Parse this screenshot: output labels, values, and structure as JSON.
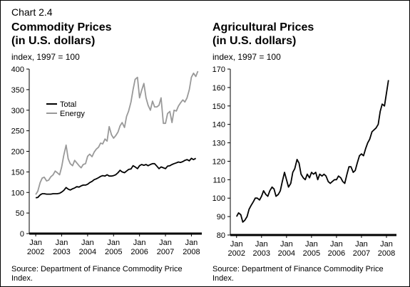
{
  "header": {
    "chart_number": "Chart 2.4"
  },
  "colors": {
    "total": "#000000",
    "energy": "#999999",
    "axis": "#000000"
  },
  "source": "Source: Department of Finance Commodity Price Index.",
  "chart_data": [
    {
      "type": "line",
      "title_line1": "Commodity Prices",
      "title_line2": "(in U.S. dollars)",
      "ylabel": "index, 1997 = 100",
      "ylim": [
        0,
        400
      ],
      "yticks": [
        0,
        50,
        100,
        150,
        200,
        250,
        300,
        350,
        400
      ],
      "xlim": [
        2001.75,
        2008.4
      ],
      "xticks": [
        {
          "v": 2002,
          "top": "Jan",
          "bottom": "2002"
        },
        {
          "v": 2003,
          "top": "Jan",
          "bottom": "2003"
        },
        {
          "v": 2004,
          "top": "Jan",
          "bottom": "2004"
        },
        {
          "v": 2005,
          "top": "Jan",
          "bottom": "2005"
        },
        {
          "v": 2006,
          "top": "Jan",
          "bottom": "2006"
        },
        {
          "v": 2007,
          "top": "Jan",
          "bottom": "2007"
        },
        {
          "v": 2008,
          "top": "Jan",
          "bottom": "2008"
        }
      ],
      "legend": {
        "position": "top-left",
        "entries": [
          "Total",
          "Energy"
        ]
      },
      "series": [
        {
          "name": "Total",
          "color": "#000000",
          "points": [
            [
              2002.0,
              87
            ],
            [
              2002.08,
              88
            ],
            [
              2002.17,
              94
            ],
            [
              2002.25,
              97
            ],
            [
              2002.33,
              97
            ],
            [
              2002.42,
              96
            ],
            [
              2002.5,
              96
            ],
            [
              2002.58,
              96
            ],
            [
              2002.67,
              97
            ],
            [
              2002.75,
              97
            ],
            [
              2002.83,
              97
            ],
            [
              2002.92,
              98
            ],
            [
              2003.0,
              101
            ],
            [
              2003.08,
              105
            ],
            [
              2003.17,
              112
            ],
            [
              2003.25,
              108
            ],
            [
              2003.33,
              106
            ],
            [
              2003.42,
              109
            ],
            [
              2003.5,
              111
            ],
            [
              2003.58,
              114
            ],
            [
              2003.67,
              113
            ],
            [
              2003.75,
              116
            ],
            [
              2003.83,
              118
            ],
            [
              2003.92,
              118
            ],
            [
              2004.0,
              120
            ],
            [
              2004.08,
              124
            ],
            [
              2004.17,
              127
            ],
            [
              2004.25,
              131
            ],
            [
              2004.33,
              133
            ],
            [
              2004.42,
              136
            ],
            [
              2004.5,
              139
            ],
            [
              2004.58,
              141
            ],
            [
              2004.67,
              140
            ],
            [
              2004.75,
              143
            ],
            [
              2004.83,
              140
            ],
            [
              2004.92,
              140
            ],
            [
              2005.0,
              141
            ],
            [
              2005.08,
              143
            ],
            [
              2005.17,
              148
            ],
            [
              2005.25,
              154
            ],
            [
              2005.33,
              150
            ],
            [
              2005.42,
              148
            ],
            [
              2005.5,
              152
            ],
            [
              2005.58,
              156
            ],
            [
              2005.67,
              157
            ],
            [
              2005.75,
              165
            ],
            [
              2005.83,
              162
            ],
            [
              2005.92,
              158
            ],
            [
              2006.0,
              165
            ],
            [
              2006.08,
              168
            ],
            [
              2006.17,
              166
            ],
            [
              2006.25,
              168
            ],
            [
              2006.33,
              165
            ],
            [
              2006.42,
              168
            ],
            [
              2006.5,
              170
            ],
            [
              2006.58,
              170
            ],
            [
              2006.67,
              164
            ],
            [
              2006.75,
              158
            ],
            [
              2006.83,
              162
            ],
            [
              2006.92,
              160
            ],
            [
              2007.0,
              158
            ],
            [
              2007.08,
              164
            ],
            [
              2007.17,
              165
            ],
            [
              2007.25,
              168
            ],
            [
              2007.33,
              170
            ],
            [
              2007.42,
              172
            ],
            [
              2007.5,
              174
            ],
            [
              2007.58,
              173
            ],
            [
              2007.67,
              175
            ],
            [
              2007.75,
              178
            ],
            [
              2007.83,
              180
            ],
            [
              2007.92,
              177
            ],
            [
              2008.0,
              183
            ],
            [
              2008.08,
              180
            ],
            [
              2008.17,
              183
            ]
          ]
        },
        {
          "name": "Energy",
          "color": "#999999",
          "points": [
            [
              2002.0,
              95
            ],
            [
              2002.08,
              103
            ],
            [
              2002.17,
              124
            ],
            [
              2002.25,
              135
            ],
            [
              2002.33,
              137
            ],
            [
              2002.42,
              128
            ],
            [
              2002.5,
              130
            ],
            [
              2002.58,
              138
            ],
            [
              2002.67,
              143
            ],
            [
              2002.75,
              152
            ],
            [
              2002.83,
              148
            ],
            [
              2002.92,
              143
            ],
            [
              2003.0,
              162
            ],
            [
              2003.08,
              190
            ],
            [
              2003.17,
              215
            ],
            [
              2003.25,
              182
            ],
            [
              2003.33,
              170
            ],
            [
              2003.42,
              165
            ],
            [
              2003.5,
              178
            ],
            [
              2003.58,
              172
            ],
            [
              2003.67,
              165
            ],
            [
              2003.75,
              160
            ],
            [
              2003.83,
              168
            ],
            [
              2003.92,
              170
            ],
            [
              2004.0,
              188
            ],
            [
              2004.08,
              193
            ],
            [
              2004.17,
              187
            ],
            [
              2004.25,
              198
            ],
            [
              2004.33,
              205
            ],
            [
              2004.42,
              210
            ],
            [
              2004.5,
              220
            ],
            [
              2004.58,
              218
            ],
            [
              2004.67,
              230
            ],
            [
              2004.75,
              225
            ],
            [
              2004.83,
              260
            ],
            [
              2004.92,
              240
            ],
            [
              2005.0,
              232
            ],
            [
              2005.08,
              238
            ],
            [
              2005.17,
              247
            ],
            [
              2005.25,
              262
            ],
            [
              2005.33,
              270
            ],
            [
              2005.42,
              258
            ],
            [
              2005.5,
              285
            ],
            [
              2005.58,
              298
            ],
            [
              2005.67,
              320
            ],
            [
              2005.75,
              350
            ],
            [
              2005.83,
              375
            ],
            [
              2005.92,
              380
            ],
            [
              2006.0,
              330
            ],
            [
              2006.08,
              348
            ],
            [
              2006.17,
              365
            ],
            [
              2006.25,
              330
            ],
            [
              2006.33,
              312
            ],
            [
              2006.42,
              300
            ],
            [
              2006.5,
              322
            ],
            [
              2006.58,
              308
            ],
            [
              2006.67,
              308
            ],
            [
              2006.75,
              312
            ],
            [
              2006.83,
              330
            ],
            [
              2006.92,
              268
            ],
            [
              2007.0,
              268
            ],
            [
              2007.08,
              292
            ],
            [
              2007.17,
              297
            ],
            [
              2007.25,
              270
            ],
            [
              2007.33,
              300
            ],
            [
              2007.42,
              298
            ],
            [
              2007.5,
              310
            ],
            [
              2007.58,
              318
            ],
            [
              2007.67,
              325
            ],
            [
              2007.75,
              320
            ],
            [
              2007.83,
              330
            ],
            [
              2007.92,
              350
            ],
            [
              2008.0,
              380
            ],
            [
              2008.08,
              390
            ],
            [
              2008.17,
              382
            ],
            [
              2008.25,
              395
            ]
          ]
        }
      ]
    },
    {
      "type": "line",
      "title_line1": "Agricultural Prices",
      "title_line2": "(in U.S. dollars)",
      "ylabel": "index, 1997 = 100",
      "ylim": [
        80,
        170
      ],
      "yticks": [
        80,
        90,
        100,
        110,
        120,
        130,
        140,
        150,
        160,
        170
      ],
      "xlim": [
        2001.75,
        2008.4
      ],
      "xticks": [
        {
          "v": 2002,
          "top": "Jan",
          "bottom": "2002"
        },
        {
          "v": 2003,
          "top": "Jan",
          "bottom": "2003"
        },
        {
          "v": 2004,
          "top": "Jan",
          "bottom": "2004"
        },
        {
          "v": 2005,
          "top": "Jan",
          "bottom": "2005"
        },
        {
          "v": 2006,
          "top": "Jan",
          "bottom": "2006"
        },
        {
          "v": 2007,
          "top": "Jan",
          "bottom": "2007"
        },
        {
          "v": 2008,
          "top": "Jan",
          "bottom": "2008"
        }
      ],
      "series": [
        {
          "color": "#000000",
          "points": [
            [
              2002.0,
              90
            ],
            [
              2002.08,
              92
            ],
            [
              2002.17,
              91
            ],
            [
              2002.25,
              87
            ],
            [
              2002.33,
              88
            ],
            [
              2002.42,
              90
            ],
            [
              2002.5,
              94
            ],
            [
              2002.58,
              96
            ],
            [
              2002.67,
              98
            ],
            [
              2002.75,
              100
            ],
            [
              2002.83,
              100
            ],
            [
              2002.92,
              99
            ],
            [
              2003.0,
              101
            ],
            [
              2003.08,
              104
            ],
            [
              2003.17,
              102
            ],
            [
              2003.25,
              101
            ],
            [
              2003.33,
              104
            ],
            [
              2003.42,
              106
            ],
            [
              2003.5,
              105
            ],
            [
              2003.58,
              101
            ],
            [
              2003.67,
              102
            ],
            [
              2003.75,
              104
            ],
            [
              2003.83,
              109
            ],
            [
              2003.92,
              114
            ],
            [
              2004.0,
              110
            ],
            [
              2004.08,
              106
            ],
            [
              2004.17,
              108
            ],
            [
              2004.25,
              114
            ],
            [
              2004.33,
              116
            ],
            [
              2004.42,
              121
            ],
            [
              2004.5,
              119
            ],
            [
              2004.58,
              113
            ],
            [
              2004.67,
              111
            ],
            [
              2004.75,
              110
            ],
            [
              2004.83,
              113
            ],
            [
              2004.92,
              111
            ],
            [
              2005.0,
              114
            ],
            [
              2005.08,
              113
            ],
            [
              2005.17,
              114
            ],
            [
              2005.25,
              110
            ],
            [
              2005.33,
              113
            ],
            [
              2005.42,
              112
            ],
            [
              2005.5,
              113
            ],
            [
              2005.58,
              112
            ],
            [
              2005.67,
              109
            ],
            [
              2005.75,
              108
            ],
            [
              2005.83,
              109
            ],
            [
              2005.92,
              110
            ],
            [
              2006.0,
              110
            ],
            [
              2006.08,
              112
            ],
            [
              2006.17,
              111
            ],
            [
              2006.25,
              109
            ],
            [
              2006.33,
              108
            ],
            [
              2006.42,
              113
            ],
            [
              2006.5,
              117
            ],
            [
              2006.58,
              117
            ],
            [
              2006.67,
              114
            ],
            [
              2006.75,
              115
            ],
            [
              2006.83,
              119
            ],
            [
              2006.92,
              123
            ],
            [
              2007.0,
              124
            ],
            [
              2007.08,
              123
            ],
            [
              2007.17,
              127
            ],
            [
              2007.25,
              130
            ],
            [
              2007.33,
              132
            ],
            [
              2007.42,
              136
            ],
            [
              2007.5,
              137
            ],
            [
              2007.58,
              138
            ],
            [
              2007.67,
              140
            ],
            [
              2007.75,
              147
            ],
            [
              2007.83,
              151
            ],
            [
              2007.92,
              150
            ],
            [
              2008.0,
              157
            ],
            [
              2008.08,
              164
            ]
          ]
        }
      ]
    }
  ]
}
